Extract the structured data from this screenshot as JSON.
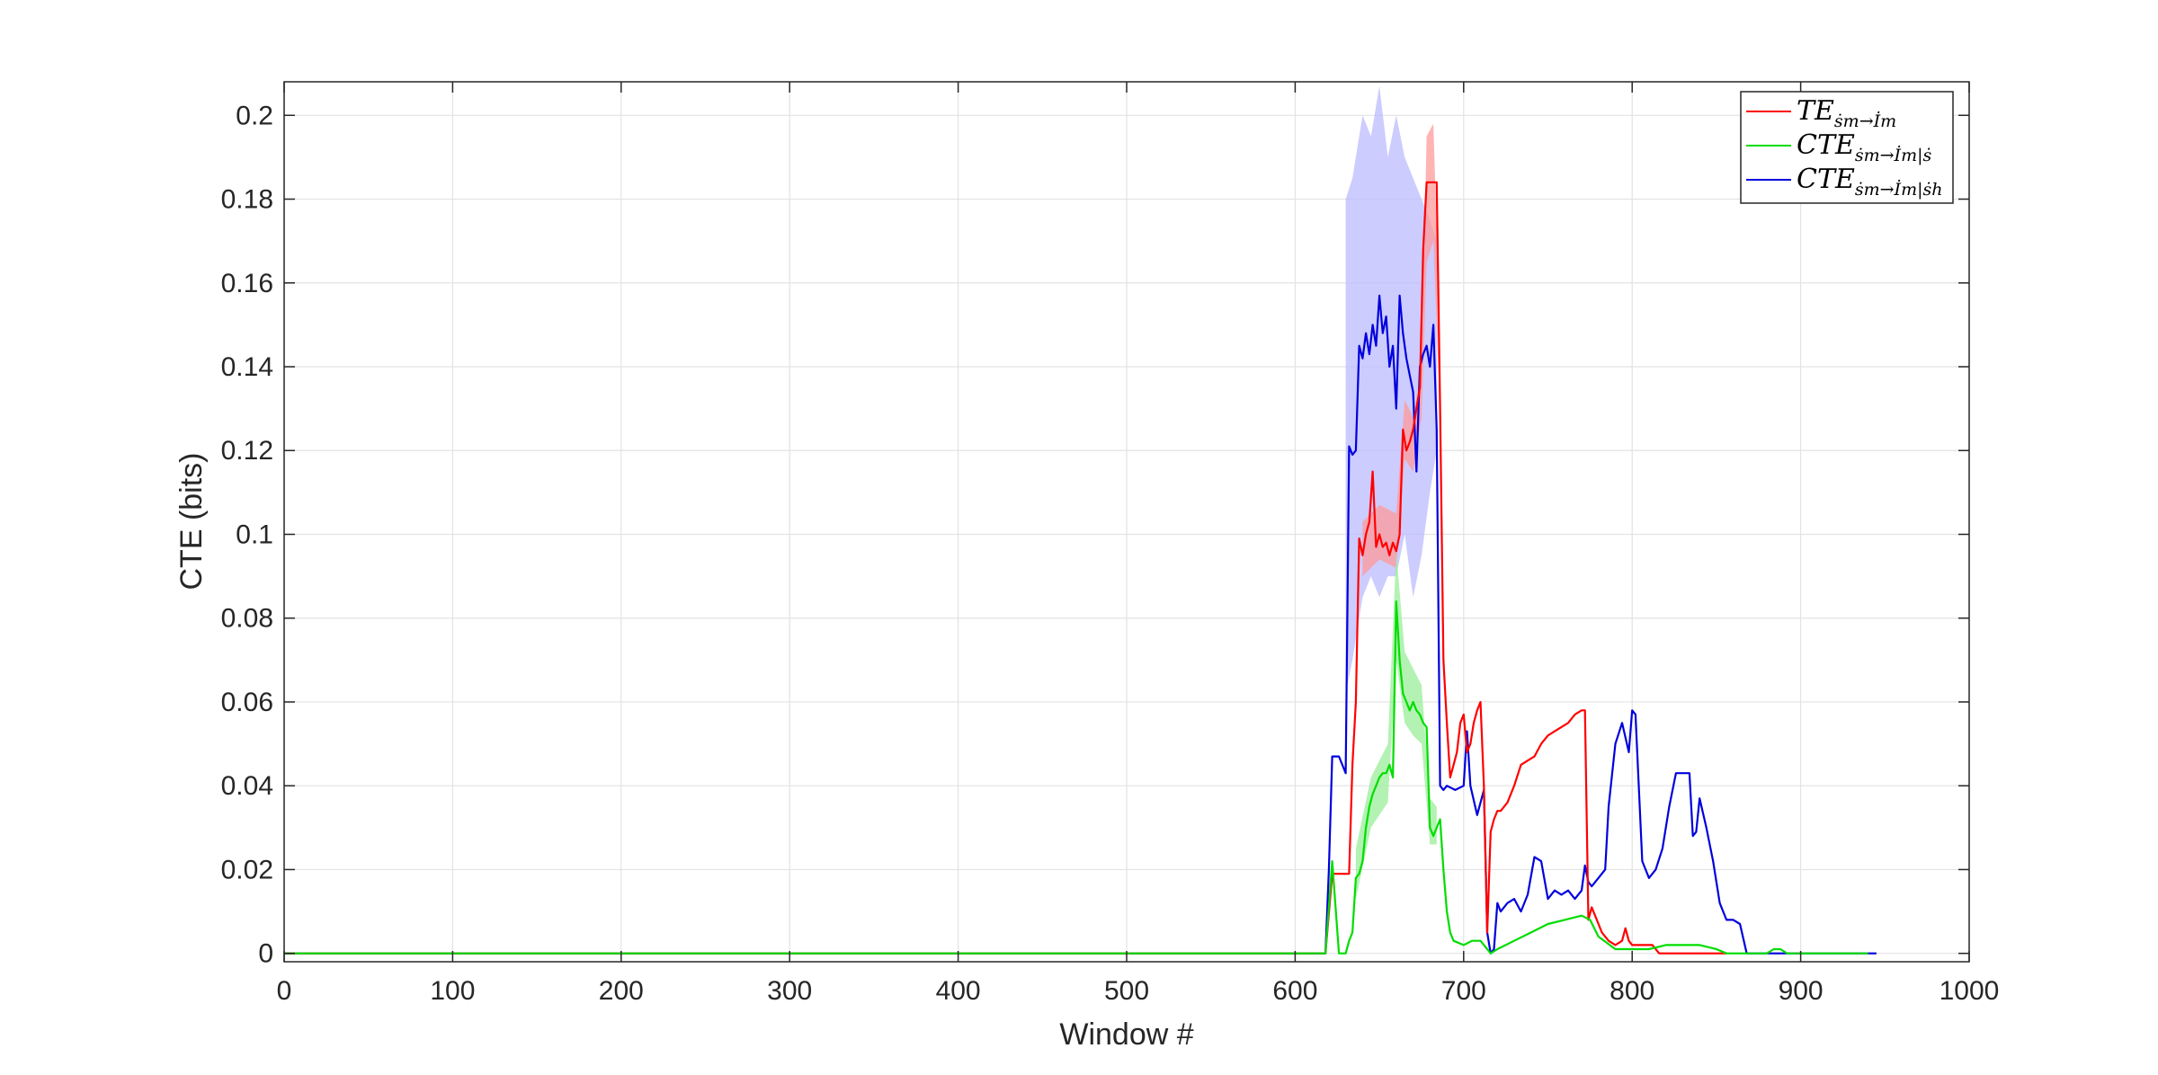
{
  "chart_data": {
    "type": "line",
    "title": "",
    "xlabel": "Window #",
    "ylabel": "CTE (bits)",
    "xlim": [
      0,
      1000
    ],
    "ylim": [
      -0.002,
      0.208
    ],
    "xticks": [
      0,
      100,
      200,
      300,
      400,
      500,
      600,
      700,
      800,
      900,
      1000
    ],
    "xtick_labels": [
      "0",
      "100",
      "200",
      "300",
      "400",
      "500",
      "600",
      "700",
      "800",
      "900",
      "1000"
    ],
    "yticks": [
      0,
      0.02,
      0.04,
      0.06,
      0.08,
      0.1,
      0.12,
      0.14,
      0.16,
      0.18,
      0.2
    ],
    "ytick_labels": [
      "0",
      "0.02",
      "0.04",
      "0.06",
      "0.08",
      "0.1",
      "0.12",
      "0.14",
      "0.16",
      "0.18",
      "0.2"
    ],
    "grid": true,
    "legend_position": "top-right",
    "series": [
      {
        "name": "TE_{ṡm→İm}",
        "legend": {
          "main": "TE",
          "sub": "ṡm→İm"
        },
        "color": "#ff0000",
        "band_color": "#ff9999",
        "x": [
          0,
          618,
          622,
          626,
          632,
          634,
          636,
          638,
          640,
          642,
          644,
          646,
          648,
          650,
          652,
          654,
          656,
          658,
          660,
          662,
          664,
          666,
          668,
          670,
          672,
          674,
          676,
          678,
          680,
          682,
          684,
          686,
          688,
          690,
          692,
          694,
          696,
          698,
          700,
          702,
          704,
          706,
          708,
          710,
          712,
          714,
          716,
          718,
          720,
          722,
          726,
          730,
          734,
          738,
          742,
          746,
          750,
          754,
          758,
          762,
          766,
          770,
          772,
          774,
          776,
          778,
          782,
          786,
          790,
          794,
          796,
          798,
          800,
          804,
          808,
          812,
          816,
          820,
          830,
          840,
          850,
          856
        ],
        "y": [
          0,
          0,
          0.019,
          0.019,
          0.019,
          0.045,
          0.06,
          0.099,
          0.095,
          0.1,
          0.103,
          0.115,
          0.097,
          0.1,
          0.097,
          0.098,
          0.095,
          0.098,
          0.096,
          0.1,
          0.125,
          0.12,
          0.122,
          0.125,
          0.13,
          0.135,
          0.168,
          0.184,
          0.184,
          0.184,
          0.184,
          0.13,
          0.07,
          0.055,
          0.042,
          0.045,
          0.048,
          0.055,
          0.057,
          0.048,
          0.05,
          0.055,
          0.058,
          0.06,
          0.04,
          0.005,
          0.029,
          0.032,
          0.034,
          0.034,
          0.036,
          0.04,
          0.045,
          0.046,
          0.047,
          0.05,
          0.052,
          0.053,
          0.054,
          0.055,
          0.057,
          0.058,
          0.058,
          0.008,
          0.011,
          0.009,
          0.005,
          0.003,
          0.002,
          0.003,
          0.006,
          0.003,
          0.002,
          0.002,
          0.002,
          0.002,
          0.0,
          0.0,
          0.0,
          0.0,
          0.0,
          0.0
        ],
        "band_x": [
          640,
          650,
          660,
          665,
          670,
          675,
          678,
          682,
          686
        ],
        "band_lo": [
          0.09,
          0.094,
          0.092,
          0.118,
          0.115,
          0.128,
          0.165,
          0.17,
          0.128
        ],
        "band_hi": [
          0.103,
          0.107,
          0.105,
          0.132,
          0.128,
          0.14,
          0.195,
          0.198,
          0.145
        ]
      },
      {
        "name": "CTE_{ṡm→İm|ṡ}",
        "legend": {
          "main": "CTE",
          "sub": "ṡm→İm|ṡ"
        },
        "color": "#00dd00",
        "band_color": "#99ee99",
        "x": [
          0,
          618,
          622,
          626,
          630,
          632,
          634,
          636,
          638,
          640,
          642,
          644,
          646,
          648,
          650,
          652,
          654,
          656,
          658,
          660,
          662,
          664,
          666,
          668,
          670,
          672,
          674,
          676,
          678,
          680,
          682,
          684,
          686,
          688,
          690,
          692,
          694,
          700,
          705,
          710,
          716,
          720,
          730,
          740,
          750,
          760,
          770,
          775,
          780,
          790,
          800,
          810,
          820,
          830,
          840,
          850,
          856,
          870,
          880,
          884,
          888,
          892,
          900,
          940
        ],
        "y": [
          0,
          0,
          0.022,
          0.0,
          0.0,
          0.003,
          0.005,
          0.018,
          0.019,
          0.022,
          0.03,
          0.035,
          0.038,
          0.04,
          0.042,
          0.043,
          0.043,
          0.045,
          0.042,
          0.084,
          0.07,
          0.062,
          0.06,
          0.058,
          0.06,
          0.058,
          0.057,
          0.055,
          0.054,
          0.03,
          0.028,
          0.03,
          0.032,
          0.02,
          0.01,
          0.005,
          0.003,
          0.002,
          0.003,
          0.003,
          0.0,
          0.001,
          0.003,
          0.005,
          0.007,
          0.008,
          0.009,
          0.008,
          0.004,
          0.001,
          0.001,
          0.001,
          0.002,
          0.002,
          0.002,
          0.001,
          0.0,
          0.0,
          0.0,
          0.001,
          0.001,
          0.0,
          0.0,
          0.0
        ],
        "band_x": [
          636,
          645,
          655,
          660,
          665,
          670,
          675,
          680,
          684
        ],
        "band_lo": [
          0.013,
          0.03,
          0.036,
          0.07,
          0.055,
          0.052,
          0.05,
          0.026,
          0.026
        ],
        "band_hi": [
          0.025,
          0.042,
          0.05,
          0.096,
          0.072,
          0.068,
          0.064,
          0.037,
          0.035
        ]
      },
      {
        "name": "CTE_{ṡm→İm|ṡh}",
        "legend": {
          "main": "CTE",
          "sub": "ṡm→İm|ṡh"
        },
        "color": "#0000dd",
        "band_color": "#bbbbff",
        "x": [
          0,
          618,
          620,
          622,
          626,
          630,
          632,
          634,
          636,
          638,
          640,
          642,
          644,
          646,
          648,
          650,
          652,
          654,
          656,
          658,
          660,
          662,
          664,
          666,
          668,
          670,
          672,
          674,
          676,
          678,
          680,
          682,
          684,
          686,
          688,
          690,
          695,
          700,
          702,
          704,
          708,
          712,
          714,
          716,
          718,
          720,
          722,
          726,
          730,
          734,
          738,
          742,
          746,
          750,
          754,
          758,
          762,
          766,
          770,
          772,
          774,
          776,
          780,
          784,
          786,
          790,
          794,
          798,
          800,
          802,
          806,
          810,
          814,
          818,
          822,
          826,
          830,
          834,
          836,
          838,
          840,
          844,
          848,
          852,
          856,
          860,
          864,
          868,
          880,
          900,
          920,
          945
        ],
        "y": [
          0,
          0,
          0.02,
          0.047,
          0.047,
          0.043,
          0.121,
          0.119,
          0.12,
          0.145,
          0.142,
          0.148,
          0.143,
          0.15,
          0.145,
          0.157,
          0.148,
          0.152,
          0.14,
          0.145,
          0.13,
          0.157,
          0.148,
          0.142,
          0.138,
          0.134,
          0.115,
          0.14,
          0.143,
          0.145,
          0.14,
          0.15,
          0.125,
          0.04,
          0.039,
          0.04,
          0.039,
          0.04,
          0.053,
          0.04,
          0.033,
          0.039,
          0.005,
          0.0,
          0.001,
          0.012,
          0.01,
          0.012,
          0.013,
          0.01,
          0.014,
          0.023,
          0.022,
          0.013,
          0.015,
          0.014,
          0.015,
          0.013,
          0.015,
          0.021,
          0.017,
          0.016,
          0.018,
          0.02,
          0.035,
          0.05,
          0.055,
          0.048,
          0.058,
          0.057,
          0.022,
          0.018,
          0.02,
          0.025,
          0.035,
          0.043,
          0.043,
          0.043,
          0.028,
          0.029,
          0.037,
          0.03,
          0.022,
          0.012,
          0.008,
          0.008,
          0.007,
          0.0,
          0.0,
          0.0,
          0.0,
          0.0
        ],
        "band_x": [
          630,
          634,
          640,
          645,
          650,
          655,
          660,
          665,
          670,
          675,
          680,
          684
        ],
        "band_lo": [
          0.062,
          0.07,
          0.085,
          0.09,
          0.085,
          0.09,
          0.09,
          0.1,
          0.085,
          0.095,
          0.11,
          0.12
        ],
        "band_hi": [
          0.18,
          0.185,
          0.2,
          0.195,
          0.207,
          0.19,
          0.2,
          0.19,
          0.185,
          0.18,
          0.175,
          0.17
        ]
      }
    ]
  }
}
